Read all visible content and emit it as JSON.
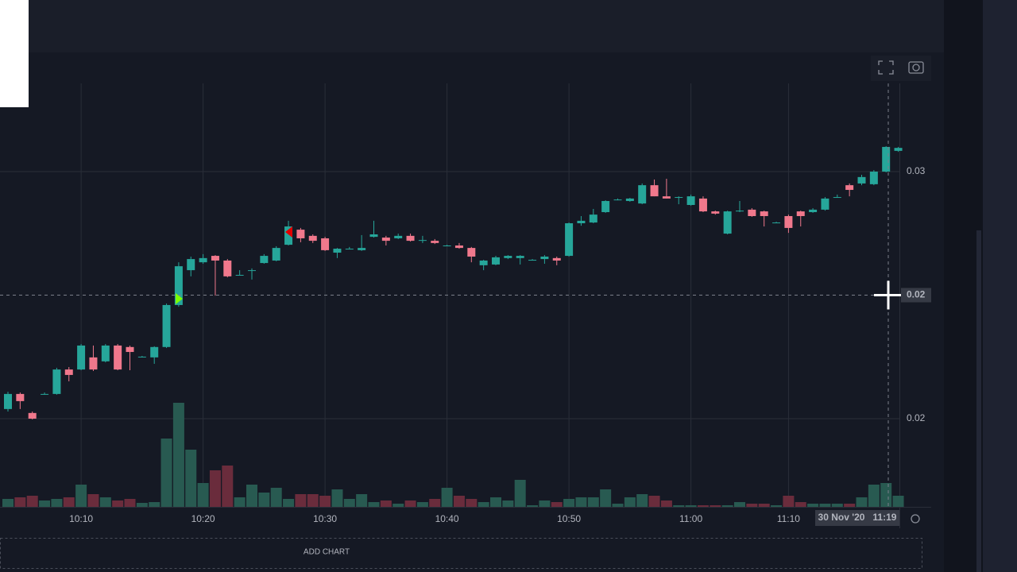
{
  "chart_data": {
    "type": "candlestick",
    "categories": [
      null,
      null,
      null,
      null,
      null,
      null,
      "10:10",
      null,
      null,
      null,
      null,
      null,
      null,
      null,
      null,
      null,
      "10:20",
      null,
      null,
      null,
      null,
      null,
      null,
      null,
      null,
      null,
      "10:30",
      null,
      null,
      null,
      null,
      null,
      null,
      null,
      null,
      null,
      "10:40",
      null,
      null,
      null,
      null,
      null,
      null,
      null,
      null,
      null,
      "10:50",
      null,
      null,
      null,
      null,
      null,
      null,
      null,
      null,
      null,
      "11:00",
      null,
      null,
      null,
      null,
      null,
      null,
      null,
      "11:10",
      null,
      null,
      null,
      null,
      null,
      null,
      null,
      null,
      null
    ],
    "open": [
      0.01539,
      0.016,
      0.01523,
      0.016,
      0.016,
      0.01699,
      0.01699,
      0.01748,
      0.01732,
      0.01796,
      0.0179,
      0.01751,
      0.01748,
      0.0179,
      0.0196,
      0.02101,
      0.02133,
      0.02159,
      0.0214,
      0.02082,
      0.02101,
      0.0213,
      0.0214,
      0.02204,
      0.02265,
      0.0224,
      0.0223,
      0.02172,
      0.02188,
      0.02182,
      0.02236,
      0.02233,
      0.0223,
      0.0224,
      0.02223,
      0.0222,
      0.02201,
      0.02201,
      0.02191,
      0.02121,
      0.02124,
      0.0215,
      0.0215,
      0.02143,
      0.02146,
      0.0215,
      0.02159,
      0.02291,
      0.02294,
      0.02336,
      0.02387,
      0.02381,
      0.02371,
      0.02445,
      0.024,
      0.02397,
      0.02365,
      0.02391,
      0.02339,
      0.02249,
      0.02342,
      0.02346,
      0.02339,
      0.02294,
      0.0232,
      0.02339,
      0.02336,
      0.02346,
      0.02397,
      0.02445,
      0.02452,
      0.02449,
      0.025,
      0.02584
    ],
    "high": [
      0.01609,
      0.01606,
      0.01529,
      0.01606,
      0.01706,
      0.01709,
      0.01802,
      0.01796,
      0.01802,
      0.01802,
      0.01796,
      0.01754,
      0.01793,
      0.01966,
      0.02133,
      0.02156,
      0.02166,
      0.02162,
      0.02146,
      0.02101,
      0.02108,
      0.02166,
      0.02198,
      0.02301,
      0.02272,
      0.02246,
      0.02236,
      0.02191,
      0.02195,
      0.02243,
      0.02301,
      0.0224,
      0.02249,
      0.02249,
      0.0224,
      0.02227,
      0.02204,
      0.02211,
      0.02195,
      0.02143,
      0.02159,
      0.02162,
      0.02162,
      0.02146,
      0.02162,
      0.02156,
      0.02294,
      0.0232,
      0.02349,
      0.02384,
      0.02391,
      0.02394,
      0.02452,
      0.02468,
      0.02471,
      0.024,
      0.02407,
      0.024,
      0.02342,
      0.02342,
      0.02381,
      0.02352,
      0.02342,
      0.02297,
      0.02326,
      0.02342,
      0.02352,
      0.02397,
      0.02407,
      0.02452,
      0.02487,
      0.02506,
      0.02603,
      0.026
    ],
    "low": [
      0.01529,
      0.01539,
      0.01497,
      0.01597,
      0.01597,
      0.01651,
      0.01696,
      0.01693,
      0.01728,
      0.01696,
      0.01696,
      0.01748,
      0.01722,
      0.01786,
      0.01953,
      0.02076,
      0.02127,
      0.01998,
      0.02072,
      0.02079,
      0.02063,
      0.02127,
      0.02137,
      0.02201,
      0.02214,
      0.02211,
      0.02179,
      0.0215,
      0.02185,
      0.02179,
      0.02233,
      0.02201,
      0.02227,
      0.02217,
      0.02211,
      0.02207,
      0.02198,
      0.02188,
      0.02133,
      0.02101,
      0.02121,
      0.02146,
      0.02124,
      0.0214,
      0.02127,
      0.02121,
      0.02156,
      0.02281,
      0.02291,
      0.02333,
      0.02384,
      0.02378,
      0.02368,
      0.024,
      0.02391,
      0.02368,
      0.02362,
      0.02336,
      0.02326,
      0.02246,
      0.02336,
      0.02317,
      0.02278,
      0.02291,
      0.02252,
      0.02278,
      0.02333,
      0.02342,
      0.02394,
      0.024,
      0.02445,
      0.02445,
      0.02497,
      0.0258
    ],
    "close": [
      0.016,
      0.01571,
      0.015,
      0.016,
      0.01699,
      0.01677,
      0.01796,
      0.01699,
      0.01796,
      0.01699,
      0.0177,
      0.01751,
      0.0179,
      0.0196,
      0.02117,
      0.02146,
      0.0215,
      0.0214,
      0.02076,
      0.02082,
      0.02101,
      0.02159,
      0.02191,
      0.02278,
      0.0223,
      0.0222,
      0.02182,
      0.02188,
      0.02188,
      0.02191,
      0.02246,
      0.0222,
      0.0224,
      0.0222,
      0.02223,
      0.02211,
      0.02201,
      0.02191,
      0.02156,
      0.0214,
      0.02153,
      0.02159,
      0.02159,
      0.02143,
      0.02156,
      0.0214,
      0.02291,
      0.02301,
      0.02326,
      0.02381,
      0.02387,
      0.02391,
      0.02445,
      0.024,
      0.02391,
      0.02397,
      0.024,
      0.02339,
      0.0233,
      0.02339,
      0.02342,
      0.0232,
      0.0232,
      0.02294,
      0.02272,
      0.0232,
      0.02346,
      0.02391,
      0.02397,
      0.02426,
      0.02478,
      0.025,
      0.026,
      0.02596
    ],
    "volume": [
      10,
      12,
      14,
      8,
      10,
      12,
      28,
      16,
      12,
      8,
      10,
      5,
      6,
      86,
      131,
      72,
      30,
      46,
      52,
      12,
      28,
      18,
      24,
      10,
      16,
      16,
      14,
      22,
      10,
      16,
      6,
      8,
      4,
      8,
      6,
      10,
      24,
      14,
      10,
      6,
      12,
      8,
      34,
      2,
      8,
      6,
      10,
      12,
      12,
      22,
      4,
      12,
      16,
      14,
      8,
      2,
      2,
      2,
      2,
      2,
      6,
      4,
      4,
      2,
      14,
      6,
      4,
      4,
      4,
      4,
      12,
      28,
      30,
      14
    ],
    "ylim": [
      0.01143,
      0.02857
    ],
    "yticks": [
      {
        "value": 0.025,
        "label": "0.03"
      },
      {
        "value": 0.015,
        "label": "0.02"
      }
    ],
    "grid": true,
    "up_color": "#26a69a",
    "down_color": "#f0788c",
    "volume_up_color": "#285a51",
    "volume_down_color": "#6a2c3c",
    "crosshair": {
      "value": 0.02,
      "x_label": "30 Nov '20   11:19"
    }
  },
  "ui": {
    "add_chart": "ADD CHART"
  }
}
